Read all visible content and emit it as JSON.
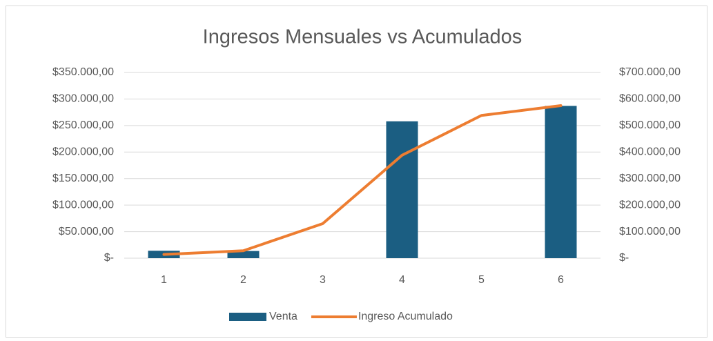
{
  "chart_data": {
    "type": "combo",
    "title": "Ingresos Mensuales vs Acumulados",
    "categories": [
      "1",
      "2",
      "3",
      "4",
      "5",
      "6"
    ],
    "series": [
      {
        "name": "Venta",
        "type": "bar",
        "color": "#1b5e82",
        "axis": "y",
        "values": [
          14000,
          13500,
          0,
          258000,
          0,
          287000
        ]
      },
      {
        "name": "Ingreso Acumulado",
        "type": "line",
        "color": "#ed7d31",
        "axis": "y2",
        "values": [
          14000,
          28000,
          130000,
          388000,
          538000,
          575000
        ]
      }
    ],
    "ylim": [
      0,
      350000
    ],
    "yticks": [
      {
        "value": 0,
        "label": "$-"
      },
      {
        "value": 50000,
        "label": "$50.000,00"
      },
      {
        "value": 100000,
        "label": "$100.000,00"
      },
      {
        "value": 150000,
        "label": "$150.000,00"
      },
      {
        "value": 200000,
        "label": "$200.000,00"
      },
      {
        "value": 250000,
        "label": "$250.000,00"
      },
      {
        "value": 300000,
        "label": "$300.000,00"
      },
      {
        "value": 350000,
        "label": "$350.000,00"
      }
    ],
    "y2lim": [
      0,
      700000
    ],
    "y2ticks": [
      {
        "value": 0,
        "label": "$-"
      },
      {
        "value": 100000,
        "label": "$100.000,00"
      },
      {
        "value": 200000,
        "label": "$200.000,00"
      },
      {
        "value": 300000,
        "label": "$300.000,00"
      },
      {
        "value": 400000,
        "label": "$400.000,00"
      },
      {
        "value": 500000,
        "label": "$500.000,00"
      },
      {
        "value": 600000,
        "label": "$600.000,00"
      },
      {
        "value": 700000,
        "label": "$700.000,00"
      }
    ],
    "grid": true,
    "legend": "bottom"
  }
}
